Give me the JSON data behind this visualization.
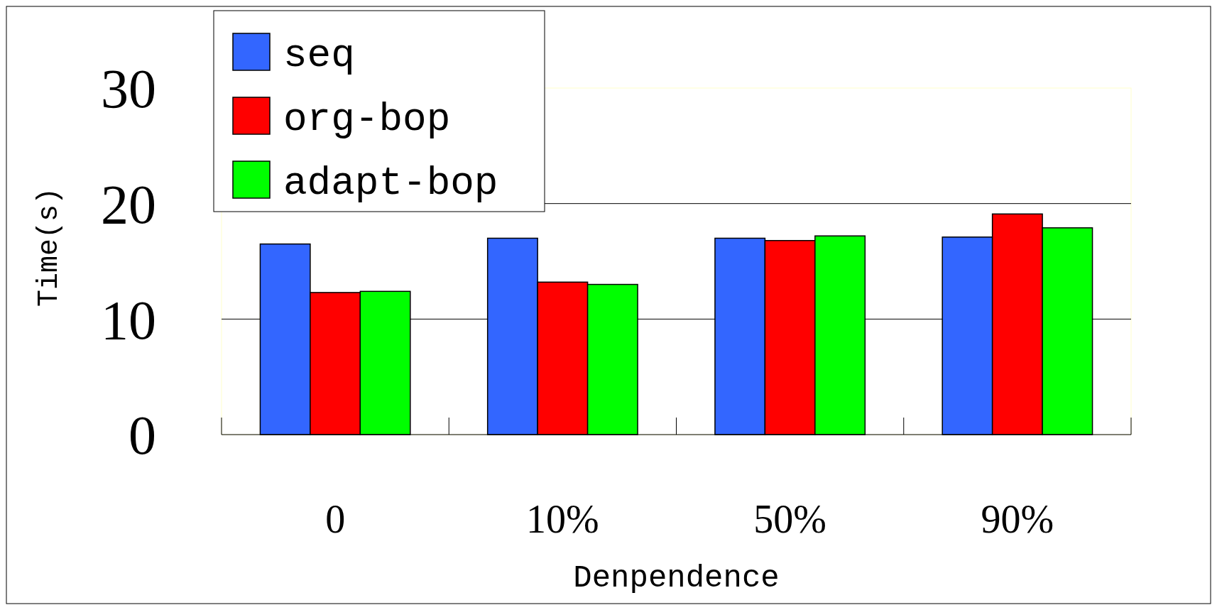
{
  "chart_data": {
    "type": "bar",
    "xlabel": "Denpendence",
    "ylabel": "Time(s)",
    "categories": [
      "0",
      "10%",
      "50%",
      "90%"
    ],
    "series": [
      {
        "name": "seq",
        "color": "#3366ff",
        "values": [
          16.5,
          17.0,
          17.0,
          17.1
        ]
      },
      {
        "name": "org-bop",
        "color": "#ff0000",
        "values": [
          12.3,
          13.2,
          16.8,
          19.1
        ]
      },
      {
        "name": "adapt-bop",
        "color": "#00ff00",
        "values": [
          12.4,
          13.0,
          17.2,
          17.9
        ]
      }
    ],
    "ylim": [
      0,
      30
    ],
    "yticks": [
      0,
      10,
      20,
      30
    ],
    "grid": "y",
    "legend": "top left"
  }
}
